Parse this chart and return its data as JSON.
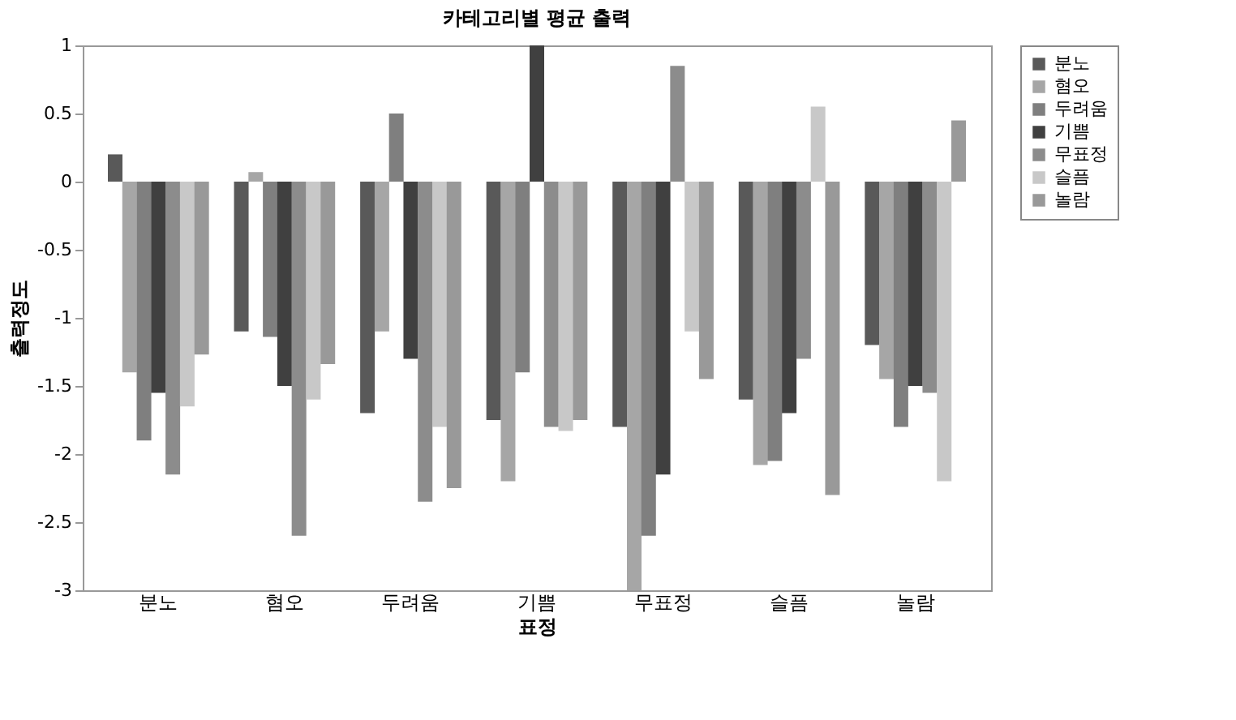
{
  "chart_data": {
    "type": "bar",
    "title": "카테고리별 평균 출력",
    "xlabel": "표정",
    "ylabel": "출력정도",
    "categories": [
      "분노",
      "혐오",
      "두려움",
      "기쁨",
      "무표정",
      "슬픔",
      "놀람"
    ],
    "series": [
      {
        "name": "분노",
        "color": "#595959",
        "values": [
          0.2,
          -1.1,
          -1.7,
          -1.75,
          -1.8,
          -1.6,
          -1.2
        ]
      },
      {
        "name": "혐오",
        "color": "#a6a6a6",
        "values": [
          -1.4,
          0.07,
          -1.1,
          -2.2,
          -3.0,
          -2.08,
          -1.45
        ]
      },
      {
        "name": "두려움",
        "color": "#7f7f7f",
        "values": [
          -1.9,
          -1.14,
          0.5,
          -1.4,
          -2.6,
          -2.05,
          -1.8
        ]
      },
      {
        "name": "기쁨",
        "color": "#404040",
        "values": [
          -1.55,
          -1.5,
          -1.3,
          1.0,
          -2.15,
          -1.7,
          -1.5
        ]
      },
      {
        "name": "무표정",
        "color": "#8c8c8c",
        "values": [
          -2.15,
          -2.6,
          -2.35,
          -1.8,
          0.85,
          -1.3,
          -1.55
        ]
      },
      {
        "name": "슬픔",
        "color": "#c8c8c8",
        "values": [
          -1.65,
          -1.6,
          -1.8,
          -1.83,
          -1.1,
          0.55,
          -2.2
        ]
      },
      {
        "name": "놀람",
        "color": "#999999",
        "values": [
          -1.27,
          -1.34,
          -2.25,
          -1.75,
          -1.45,
          -2.3,
          0.45
        ]
      }
    ],
    "ylim": [
      -3,
      1
    ],
    "yticks": [
      -3,
      -2.5,
      -2,
      -1.5,
      -1,
      -0.5,
      0,
      0.5,
      1
    ],
    "grid": false,
    "legend": "right"
  }
}
